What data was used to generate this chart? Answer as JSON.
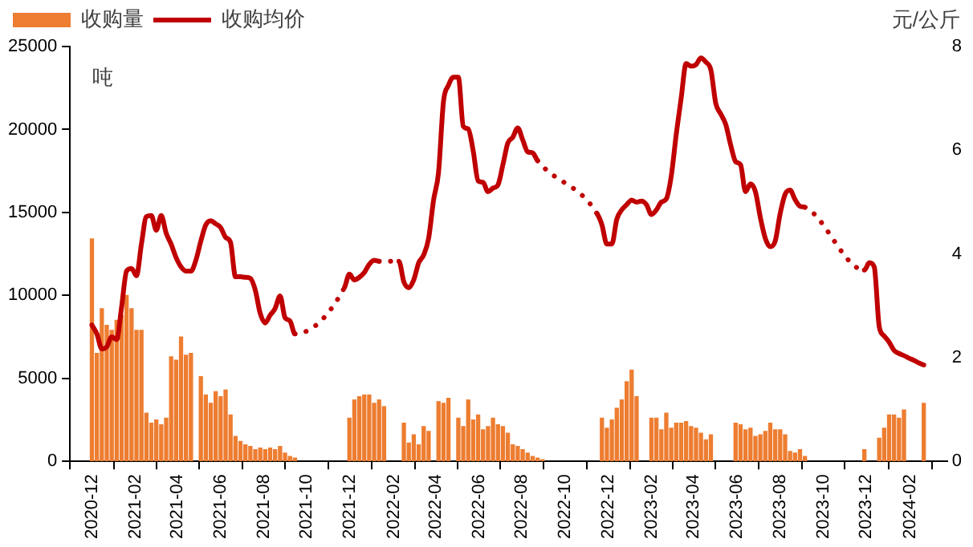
{
  "chart_data": {
    "type": "bar",
    "ylabel": "吨",
    "y2label": "元/公斤",
    "legend": "top left",
    "x": [
      "2020-12-01",
      "2020-12-08",
      "2020-12-15",
      "2020-12-22",
      "2020-12-29",
      "2021-01-05",
      "2021-01-12",
      "2021-01-19",
      "2021-01-26",
      "2021-02-02",
      "2021-02-09",
      "2021-02-16",
      "2021-02-23",
      "2021-03-02",
      "2021-03-09",
      "2021-03-16",
      "2021-03-23",
      "2021-03-30",
      "2021-04-06",
      "2021-04-13",
      "2021-04-20",
      "2021-04-27",
      "2021-05-04",
      "2021-05-11",
      "2021-05-18",
      "2021-05-25",
      "2021-06-01",
      "2021-06-08",
      "2021-06-15",
      "2021-06-22",
      "2021-06-29",
      "2021-07-06",
      "2021-07-13",
      "2021-07-20",
      "2021-07-27",
      "2021-08-03",
      "2021-08-10",
      "2021-08-17",
      "2021-08-24",
      "2021-08-31",
      "2021-09-07",
      "2021-09-14",
      "2021-09-21",
      "2021-09-28",
      "2021-10-05",
      "2021-10-12",
      "2021-10-19",
      "2021-10-26",
      "2021-11-02",
      "2021-11-09",
      "2021-11-16",
      "2021-11-23",
      "2021-11-30",
      "2021-12-07",
      "2021-12-14",
      "2021-12-21",
      "2021-12-28",
      "2022-01-04",
      "2022-01-11",
      "2022-01-18",
      "2022-01-25",
      "2022-02-01",
      "2022-02-08",
      "2022-02-15",
      "2022-02-22",
      "2022-03-01",
      "2022-03-08",
      "2022-03-15",
      "2022-03-22",
      "2022-03-29",
      "2022-04-05",
      "2022-04-12",
      "2022-04-19",
      "2022-04-26",
      "2022-05-03",
      "2022-05-10",
      "2022-05-17",
      "2022-05-24",
      "2022-05-31",
      "2022-06-07",
      "2022-06-14",
      "2022-06-21",
      "2022-06-28",
      "2022-07-05",
      "2022-07-12",
      "2022-07-19",
      "2022-07-26",
      "2022-08-02",
      "2022-08-09",
      "2022-08-16",
      "2022-08-23",
      "2022-08-30",
      "2022-09-06",
      "2022-09-13",
      "2022-09-20",
      "2022-09-27",
      "2022-10-04",
      "2022-10-11",
      "2022-10-18",
      "2022-10-25",
      "2022-11-01",
      "2022-11-08",
      "2022-11-15",
      "2022-11-22",
      "2022-11-29",
      "2022-12-06",
      "2022-12-13",
      "2022-12-20",
      "2022-12-27",
      "2023-01-03",
      "2023-01-10",
      "2023-01-17",
      "2023-01-24",
      "2023-01-31",
      "2023-02-07",
      "2023-02-14",
      "2023-02-21",
      "2023-02-28",
      "2023-03-07",
      "2023-03-14",
      "2023-03-21",
      "2023-03-28",
      "2023-04-04",
      "2023-04-11",
      "2023-04-18",
      "2023-04-25",
      "2023-05-02",
      "2023-05-09",
      "2023-05-16",
      "2023-05-23",
      "2023-05-30",
      "2023-06-06",
      "2023-06-13",
      "2023-06-20",
      "2023-06-27",
      "2023-07-04",
      "2023-07-11",
      "2023-07-18",
      "2023-07-25",
      "2023-08-01",
      "2023-08-08",
      "2023-08-15",
      "2023-08-22",
      "2023-08-29",
      "2023-09-05",
      "2023-09-12",
      "2023-09-19",
      "2023-09-26",
      "2023-10-03",
      "2023-10-10",
      "2023-10-17",
      "2023-10-24",
      "2023-10-31",
      "2023-11-07",
      "2023-11-14",
      "2023-11-21",
      "2023-11-28",
      "2023-12-05",
      "2023-12-12",
      "2023-12-19",
      "2023-12-26",
      "2024-01-02",
      "2024-01-09",
      "2024-01-16",
      "2024-01-23",
      "2024-01-30",
      "2024-02-06",
      "2024-02-13",
      "2024-02-20"
    ],
    "xlim": [
      "2020-12-01",
      "2024-02-22"
    ],
    "xticks": [
      "2020-12",
      "2021-02",
      "2021-04",
      "2021-06",
      "2021-08",
      "2021-10",
      "2021-12",
      "2022-02",
      "2022-04",
      "2022-06",
      "2022-08",
      "2022-10",
      "2022-12",
      "2023-02",
      "2023-04",
      "2023-06",
      "2023-08",
      "2023-10",
      "2023-12",
      "2024-02"
    ],
    "ylim": [
      0,
      25000
    ],
    "yticks": [
      0,
      5000,
      10000,
      15000,
      20000,
      25000
    ],
    "y2lim": [
      0,
      8
    ],
    "y2ticks": [
      0,
      2,
      4,
      6,
      8
    ],
    "series": [
      {
        "name": "收购量",
        "color": "#ed7d31",
        "values": [
          13400,
          6500,
          9200,
          8200,
          7900,
          8500,
          8800,
          10000,
          9200,
          7900,
          7900,
          2900,
          2300,
          2500,
          2200,
          2600,
          6300,
          6100,
          7500,
          6400,
          6500,
          null,
          5100,
          4000,
          3500,
          4200,
          3900,
          4300,
          2800,
          1500,
          1200,
          1000,
          900,
          700,
          800,
          700,
          800,
          700,
          900,
          500,
          300,
          200,
          null,
          null,
          null,
          null,
          null,
          null,
          null,
          null,
          null,
          null,
          2600,
          3700,
          3900,
          4000,
          4000,
          3500,
          3700,
          3300,
          null,
          null,
          null,
          2300,
          1100,
          1600,
          1000,
          2100,
          1800,
          null,
          3600,
          3500,
          3800,
          null,
          2600,
          2100,
          3700,
          2500,
          2800,
          1900,
          2100,
          2600,
          2200,
          2100,
          1700,
          1000,
          900,
          700,
          500,
          300,
          200,
          100,
          null,
          null,
          null,
          null,
          null,
          null,
          null,
          null,
          null,
          null,
          null,
          2600,
          2000,
          2500,
          3200,
          3700,
          4800,
          5500,
          3900,
          null,
          null,
          2600,
          2600,
          1900,
          2900,
          2000,
          2300,
          2300,
          2400,
          2100,
          2000,
          1700,
          1300,
          1600,
          null,
          null,
          null,
          null,
          2300,
          2200,
          1900,
          2000,
          1500,
          1600,
          1800,
          2300,
          1900,
          1900,
          1600,
          600,
          500,
          700,
          300,
          null,
          null,
          null,
          null,
          null,
          null,
          null,
          null,
          null,
          null,
          null,
          700,
          null,
          null,
          1400,
          2000,
          2800,
          2800,
          2600,
          3100,
          null,
          null,
          null,
          3500
        ]
      },
      {
        "type": "line",
        "name": "收购均价",
        "color": "#c00000",
        "axis": "y2",
        "values": [
          2.63,
          2.46,
          2.17,
          2.21,
          2.4,
          2.35,
          2.98,
          3.67,
          3.72,
          3.58,
          4.19,
          4.72,
          4.74,
          4.46,
          4.74,
          4.4,
          4.19,
          3.93,
          3.75,
          3.67,
          3.67,
          3.88,
          4.25,
          4.56,
          4.64,
          4.58,
          4.51,
          4.32,
          4.22,
          3.56,
          3.56,
          3.55,
          3.53,
          3.3,
          2.85,
          2.67,
          2.82,
          2.95,
          3.19,
          2.77,
          2.71,
          2.46,
          null,
          null,
          null,
          null,
          null,
          null,
          null,
          null,
          null,
          3.35,
          3.61,
          3.5,
          3.55,
          3.64,
          3.8,
          3.88,
          3.86,
          null,
          null,
          null,
          3.86,
          3.46,
          3.35,
          3.5,
          3.83,
          3.98,
          4.3,
          5.04,
          5.57,
          6.94,
          7.25,
          7.41,
          7.41,
          6.46,
          6.41,
          5.99,
          5.41,
          5.38,
          5.2,
          5.27,
          5.33,
          5.72,
          6.14,
          6.25,
          6.43,
          6.2,
          5.97,
          5.95,
          5.8,
          null,
          null,
          null,
          null,
          null,
          null,
          null,
          null,
          null,
          null,
          null,
          4.78,
          4.56,
          4.19,
          4.19,
          4.67,
          4.85,
          4.95,
          5.04,
          5.0,
          5.02,
          4.95,
          4.76,
          4.85,
          5.0,
          5.06,
          5.5,
          6.3,
          7.0,
          7.67,
          7.62,
          7.65,
          7.78,
          7.7,
          7.55,
          6.9,
          6.7,
          6.5,
          6.1,
          5.78,
          5.72,
          5.2,
          5.35,
          5.2,
          4.7,
          4.3,
          4.14,
          4.25,
          4.78,
          5.15,
          5.23,
          5.05,
          4.92,
          4.9,
          null,
          null,
          null,
          null,
          null,
          null,
          null,
          null,
          null,
          null,
          null,
          3.69,
          3.83,
          3.75,
          2.6,
          2.42,
          2.3,
          2.14,
          2.08,
          2.04,
          1.99,
          1.95,
          1.9,
          1.86
        ]
      }
    ]
  }
}
